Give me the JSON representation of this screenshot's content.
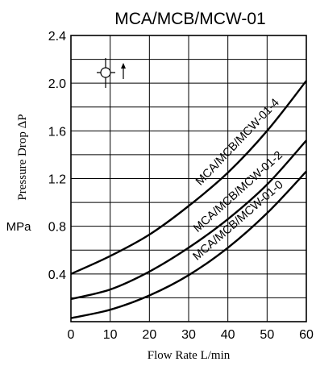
{
  "chart_data": {
    "type": "line",
    "title": "MCA/MCB/MCW-01",
    "xlabel": "Flow Rate  L/min",
    "ylabel": "Pressure Drop ΔP",
    "yunit": "MPa",
    "xlim": [
      0,
      60
    ],
    "ylim": [
      0,
      2.4
    ],
    "xticks": [
      0,
      10,
      20,
      30,
      40,
      50,
      60
    ],
    "yticks": [
      0.4,
      0.8,
      1.2,
      1.6,
      2.0,
      2.4
    ],
    "xtick_labels": [
      "0",
      "10",
      "20",
      "30",
      "40",
      "50",
      "60"
    ],
    "ytick_labels": [
      "0.4",
      "0.8",
      "1.2",
      "1.6",
      "2.0",
      "2.4"
    ],
    "grid": true,
    "legend": "none",
    "series": [
      {
        "name": "MCA/MCB/MCW-01-4",
        "x": [
          0,
          10,
          20,
          30,
          40,
          50,
          60
        ],
        "y": [
          0.4,
          0.55,
          0.73,
          0.97,
          1.25,
          1.6,
          2.02
        ]
      },
      {
        "name": "MCA/MCB/MCW-01-2",
        "x": [
          0,
          10,
          20,
          30,
          40,
          50,
          60
        ],
        "y": [
          0.19,
          0.27,
          0.42,
          0.62,
          0.86,
          1.15,
          1.52
        ]
      },
      {
        "name": "MCA/MCB/MCW-01-0",
        "x": [
          0,
          10,
          20,
          30,
          40,
          50,
          60
        ],
        "y": [
          0.03,
          0.1,
          0.22,
          0.39,
          0.62,
          0.91,
          1.26
        ]
      }
    ],
    "annotations": [
      "check-valve-symbol"
    ],
    "colors": {
      "line": "#000000",
      "grid": "#000000",
      "background": "#ffffff"
    }
  }
}
